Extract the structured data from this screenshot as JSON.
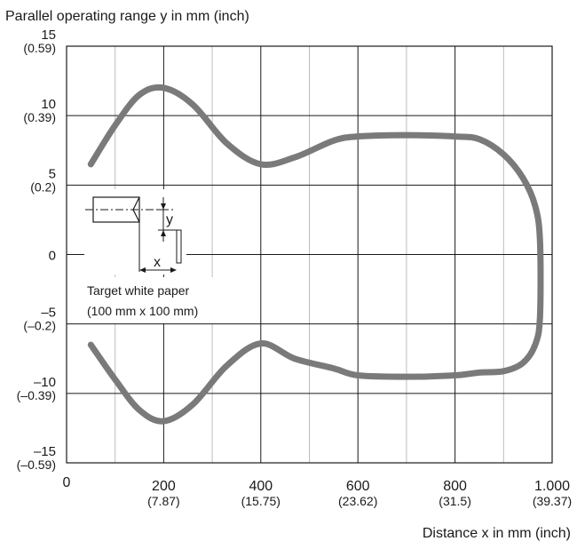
{
  "chart_data": {
    "type": "line",
    "title": "",
    "ylabel": "Parallel operating range y in mm (inch)",
    "xlabel": "Distance x in mm (inch)",
    "xlim": [
      0,
      1000
    ],
    "ylim": [
      -15,
      15
    ],
    "grid": true,
    "x_ticks": [
      {
        "value": 0,
        "label": "0",
        "sublabel": ""
      },
      {
        "value": 200,
        "label": "200",
        "sublabel": "(7.87)"
      },
      {
        "value": 400,
        "label": "400",
        "sublabel": "(15.75)"
      },
      {
        "value": 600,
        "label": "600",
        "sublabel": "(23.62)"
      },
      {
        "value": 800,
        "label": "800",
        "sublabel": "(31.5)"
      },
      {
        "value": 1000,
        "label": "1.000",
        "sublabel": "(39.37)"
      }
    ],
    "y_ticks": [
      {
        "value": 15,
        "label": "15",
        "sublabel": "(0.59)"
      },
      {
        "value": 10,
        "label": "10",
        "sublabel": "(0.39)"
      },
      {
        "value": 5,
        "label": "5",
        "sublabel": "(0.2)"
      },
      {
        "value": 0,
        "label": "0",
        "sublabel": ""
      },
      {
        "value": -5,
        "label": "–5",
        "sublabel": "(–0.2)"
      },
      {
        "value": -10,
        "label": "–10",
        "sublabel": "(–0.39)"
      },
      {
        "value": -15,
        "label": "–15",
        "sublabel": "(–0.59)"
      }
    ],
    "series": [
      {
        "color": "#7a7a7a",
        "x": [
          50,
          100,
          150,
          200,
          260,
          330,
          400,
          470,
          550,
          600,
          700,
          800,
          850,
          900,
          940,
          965,
          975,
          975,
          965,
          940,
          900,
          850,
          800,
          700,
          600,
          550,
          470,
          400,
          330,
          260,
          200,
          150,
          100,
          50
        ],
        "y": [
          6.5,
          9.3,
          11.5,
          12.0,
          10.8,
          8.0,
          6.5,
          7.0,
          8.2,
          8.5,
          8.6,
          8.5,
          8.3,
          7.2,
          5.5,
          3.5,
          1.0,
          -4.5,
          -6.5,
          -7.8,
          -8.4,
          -8.5,
          -8.7,
          -8.8,
          -8.7,
          -8.2,
          -7.5,
          -6.4,
          -8.0,
          -10.8,
          -12.0,
          -11.2,
          -9.0,
          -6.5
        ]
      }
    ],
    "annotations": {
      "target_label_line1": "Target white paper",
      "target_label_line2": "(100 mm x 100 mm)",
      "y_symbol": "y",
      "x_symbol": "x"
    }
  }
}
